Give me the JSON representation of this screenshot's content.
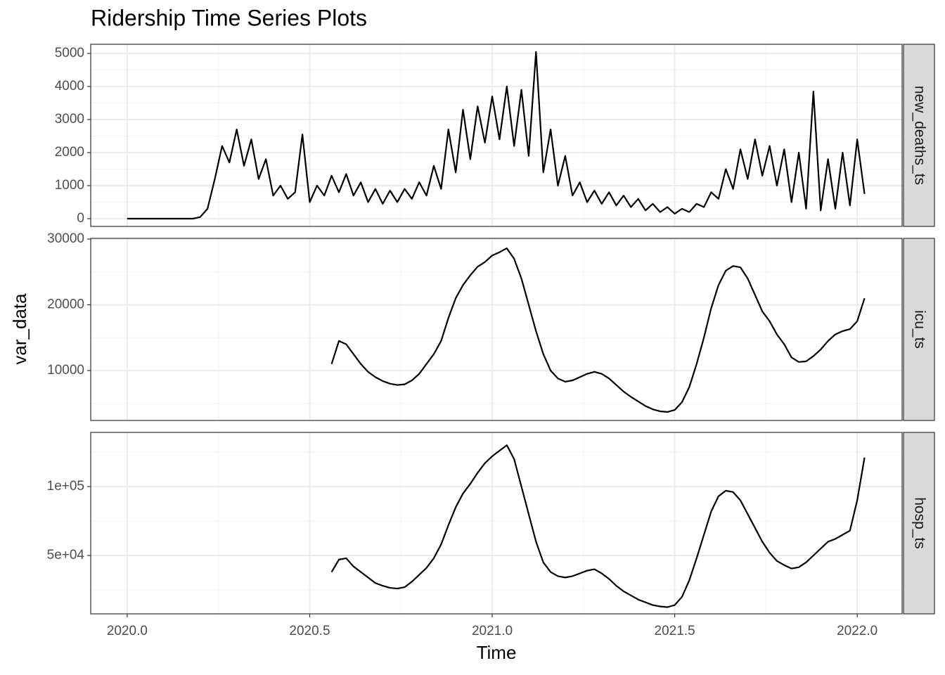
{
  "chart_data": {
    "type": "line",
    "title": "Ridership Time Series Plots",
    "x_label": "Time",
    "y_label": "var_data",
    "xlim": [
      2019.9,
      2022.123
    ],
    "xticks": [
      {
        "value": 2020,
        "label": "2020.0"
      },
      {
        "value": 2020.5,
        "label": "2020.5"
      },
      {
        "value": 2021,
        "label": "2021.0"
      },
      {
        "value": 2021.5,
        "label": "2021.5"
      },
      {
        "value": 2022,
        "label": "2022.0"
      }
    ],
    "xminor": [
      2020.25,
      2020.75,
      2021.25,
      2021.75
    ],
    "grid": true,
    "x": [
      2020.0,
      2020.02,
      2020.04,
      2020.06,
      2020.08,
      2020.1,
      2020.12,
      2020.14,
      2020.16,
      2020.18,
      2020.2,
      2020.22,
      2020.24,
      2020.26,
      2020.28,
      2020.3,
      2020.32,
      2020.34,
      2020.36,
      2020.38,
      2020.4,
      2020.42,
      2020.44,
      2020.46,
      2020.48,
      2020.5,
      2020.52,
      2020.54,
      2020.56,
      2020.58,
      2020.6,
      2020.62,
      2020.64,
      2020.66,
      2020.68,
      2020.7,
      2020.72,
      2020.74,
      2020.76,
      2020.78,
      2020.8,
      2020.82,
      2020.84,
      2020.86,
      2020.88,
      2020.9,
      2020.92,
      2020.94,
      2020.96,
      2020.98,
      2021.0,
      2021.02,
      2021.04,
      2021.06,
      2021.08,
      2021.1,
      2021.12,
      2021.14,
      2021.16,
      2021.18,
      2021.2,
      2021.22,
      2021.24,
      2021.26,
      2021.28,
      2021.3,
      2021.32,
      2021.34,
      2021.36,
      2021.38,
      2021.4,
      2021.42,
      2021.44,
      2021.46,
      2021.48,
      2021.5,
      2021.52,
      2021.54,
      2021.56,
      2021.58,
      2021.6,
      2021.62,
      2021.64,
      2021.66,
      2021.68,
      2021.7,
      2021.72,
      2021.74,
      2021.76,
      2021.78,
      2021.8,
      2021.82,
      2021.84,
      2021.86,
      2021.88,
      2021.9,
      2021.92,
      2021.94,
      2021.96,
      2021.98,
      2022.0,
      2022.02
    ],
    "panels": [
      {
        "name": "new_deaths_ts",
        "color": "#000000",
        "ylim": [
          -234,
          5277
        ],
        "yticks": [
          0,
          1000,
          2000,
          3000,
          4000,
          5000
        ],
        "yminor": [
          500,
          1500,
          2500,
          3500,
          4500
        ],
        "values": [
          0,
          0,
          0,
          0,
          0,
          0,
          0,
          0,
          0,
          0,
          50,
          300,
          1200,
          2200,
          1700,
          2700,
          1600,
          2400,
          1200,
          1800,
          700,
          1000,
          600,
          800,
          2550,
          500,
          1000,
          700,
          1300,
          800,
          1350,
          700,
          1100,
          500,
          900,
          450,
          850,
          500,
          900,
          600,
          1100,
          700,
          1600,
          900,
          2700,
          1400,
          3300,
          1800,
          3400,
          2300,
          3700,
          2400,
          4000,
          2200,
          3900,
          1900,
          5050,
          1400,
          2700,
          1000,
          1900,
          700,
          1100,
          500,
          850,
          450,
          800,
          400,
          700,
          350,
          600,
          250,
          450,
          200,
          350,
          150,
          300,
          200,
          450,
          350,
          800,
          600,
          1500,
          900,
          2100,
          1200,
          2400,
          1300,
          2200,
          1000,
          2100,
          500,
          2000,
          300,
          3850,
          250,
          1800,
          300,
          2000,
          400,
          2400,
          750
        ]
      },
      {
        "name": "icu_ts",
        "color": "#000000",
        "ylim": [
          2406,
          30107
        ],
        "yticks": [
          10000,
          20000,
          30000
        ],
        "yminor": [
          5000,
          15000,
          25000
        ],
        "values": [
          null,
          null,
          null,
          null,
          null,
          null,
          null,
          null,
          null,
          null,
          null,
          null,
          null,
          null,
          null,
          null,
          null,
          null,
          null,
          null,
          null,
          null,
          null,
          null,
          null,
          null,
          null,
          null,
          11000,
          14500,
          14000,
          12500,
          11000,
          9800,
          9000,
          8400,
          8000,
          7800,
          7900,
          8500,
          9500,
          11000,
          12500,
          14500,
          18000,
          21000,
          23000,
          24500,
          25800,
          26500,
          27500,
          28000,
          28600,
          27000,
          24000,
          20000,
          16000,
          12500,
          10000,
          8800,
          8300,
          8500,
          9000,
          9500,
          9800,
          9500,
          8800,
          7800,
          6800,
          6000,
          5300,
          4600,
          4100,
          3800,
          3700,
          4000,
          5200,
          7500,
          11000,
          15000,
          19500,
          23000,
          25200,
          25900,
          25700,
          24000,
          21500,
          19000,
          17500,
          15500,
          14000,
          12000,
          11300,
          11400,
          12200,
          13200,
          14500,
          15500,
          16000,
          16300,
          17500,
          21000
        ]
      },
      {
        "name": "hosp_ts",
        "color": "#000000",
        "ylim": [
          7653,
          139286
        ],
        "yticks": [
          {
            "value": 50000,
            "label": "5e+04"
          },
          {
            "value": 100000,
            "label": "1e+05"
          }
        ],
        "yminor": [
          25000,
          75000,
          125000
        ],
        "values": [
          null,
          null,
          null,
          null,
          null,
          null,
          null,
          null,
          null,
          null,
          null,
          null,
          null,
          null,
          null,
          null,
          null,
          null,
          null,
          null,
          null,
          null,
          null,
          null,
          null,
          null,
          null,
          null,
          38000,
          47000,
          48000,
          42000,
          38000,
          34000,
          30000,
          28000,
          26500,
          26000,
          27000,
          31000,
          36000,
          41000,
          48000,
          58000,
          72000,
          85000,
          95000,
          102000,
          110000,
          117000,
          122000,
          126000,
          130000,
          120000,
          100000,
          80000,
          60000,
          45000,
          38000,
          35000,
          34000,
          35000,
          37000,
          39000,
          40000,
          37000,
          33000,
          28000,
          24000,
          21000,
          18000,
          16000,
          14000,
          13000,
          12500,
          14000,
          20000,
          32000,
          48000,
          65000,
          82000,
          93000,
          97000,
          96000,
          90000,
          80000,
          70000,
          60000,
          52000,
          46000,
          43000,
          40500,
          41500,
          45000,
          50000,
          55000,
          60000,
          62000,
          65000,
          68000,
          90000,
          121000
        ]
      }
    ]
  }
}
